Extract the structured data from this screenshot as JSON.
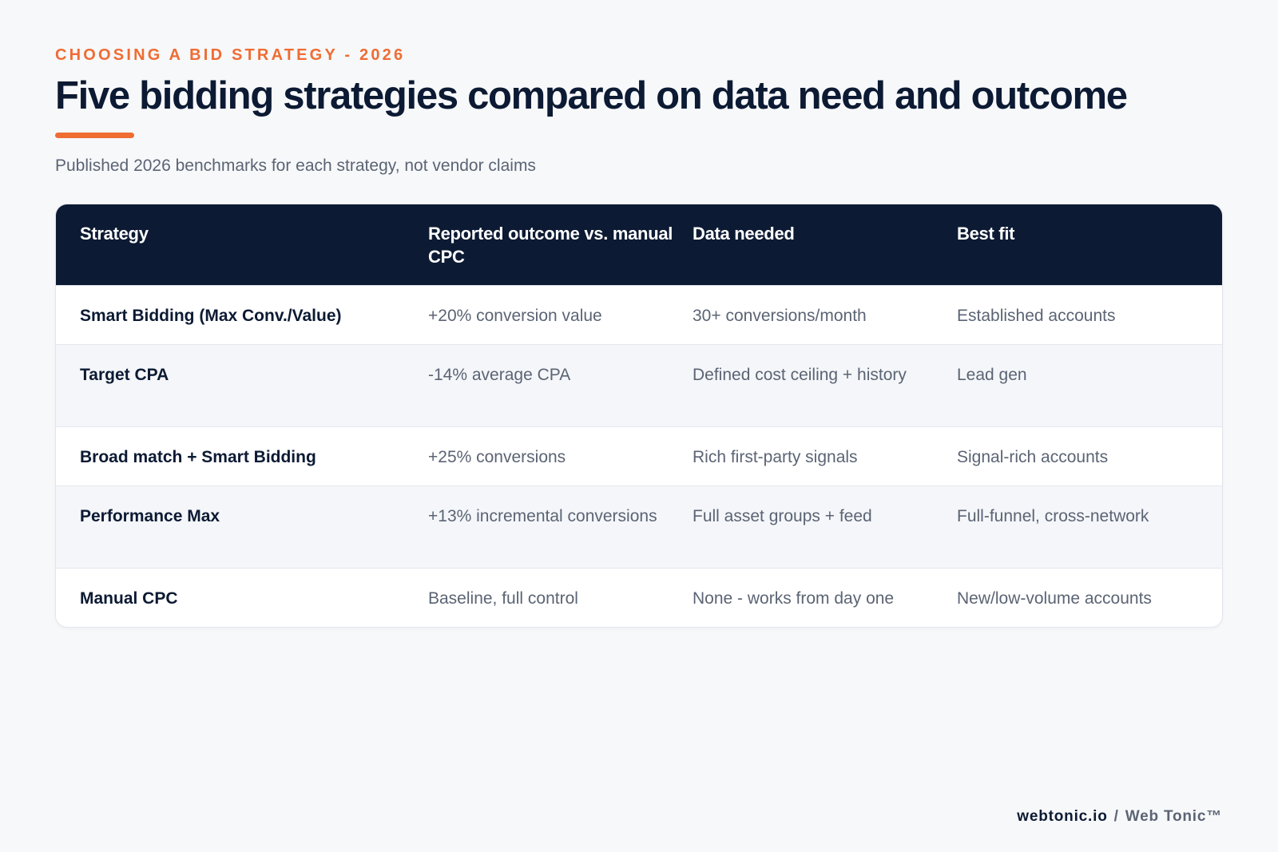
{
  "eyebrow": "CHOOSING A BID STRATEGY - 2026",
  "title": "Five bidding strategies compared on data need and outcome",
  "subtitle": "Published 2026 benchmarks for each strategy, not vendor claims",
  "accent_color": "#ef6c33",
  "header_color": "#0c1a33",
  "table": {
    "columns": [
      "Strategy",
      "Reported outcome vs. manual CPC",
      "Data needed",
      "Best fit"
    ],
    "rows": [
      [
        "Smart Bidding (Max Conv./Value)",
        "+20% conversion value",
        "30+ conversions/month",
        "Established accounts"
      ],
      [
        "Target CPA",
        "-14% average CPA",
        "Defined cost ceiling + history",
        "Lead gen"
      ],
      [
        "Broad match + Smart Bidding",
        "+25% conversions",
        "Rich first-party signals",
        "Signal-rich accounts"
      ],
      [
        "Performance Max",
        "+13% incremental conversions",
        "Full asset groups + feed",
        "Full-funnel, cross-network"
      ],
      [
        "Manual CPC",
        "Baseline, full control",
        "None - works from day one",
        "New/low-volume accounts"
      ]
    ]
  },
  "footer": {
    "site": "webtonic.io",
    "separator": "/",
    "brand": "Web Tonic™"
  }
}
